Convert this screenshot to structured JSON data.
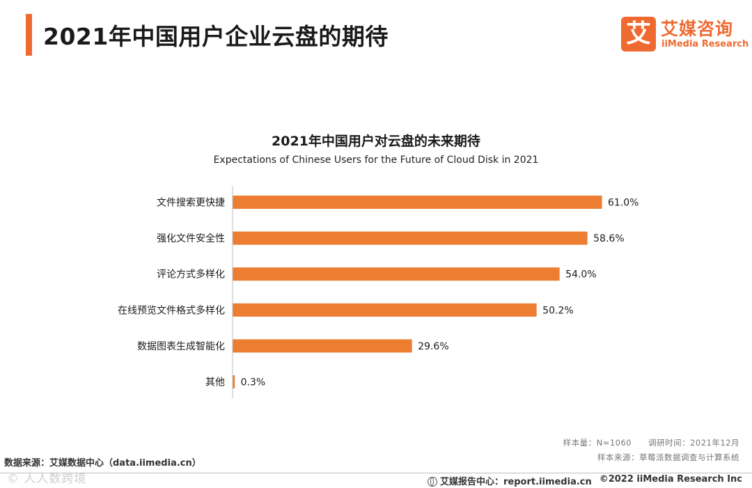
{
  "header": {
    "title": "2021年中国用户企业云盘的期待",
    "logo_mark": "艾",
    "logo_cn": "艾媒咨询",
    "logo_en": "iiMedia Research"
  },
  "chart_data": {
    "type": "bar",
    "orientation": "horizontal",
    "title": "2021年中国用户对云盘的未来期待",
    "subtitle": "Expectations of Chinese Users for the Future of Cloud Disk in 2021",
    "categories": [
      "文件搜索更快捷",
      "强化文件安全性",
      "评论方式多样化",
      "在线预览文件格式多样化",
      "数据图表生成智能化",
      "其他"
    ],
    "values": [
      61.0,
      58.6,
      54.0,
      50.2,
      29.6,
      0.3
    ],
    "value_labels": [
      "61.0%",
      "58.6%",
      "54.0%",
      "50.2%",
      "29.6%",
      "0.3%"
    ],
    "xlim": [
      0,
      61
    ],
    "bar_color": "#ed7d31",
    "grid": false
  },
  "meta": {
    "sample": "样本量：N=1060　　调研时间：2021年12月",
    "sample_source": "样本来源：草莓派数据调查与计算系统"
  },
  "footer": {
    "source": "数据来源：艾媒数据中心（data.iimedia.cn）",
    "watermark": "© 人人数跨境",
    "report": "艾媒报告中心：report.iimedia.cn",
    "copyright": "©2022  iiMedia Research  Inc"
  }
}
